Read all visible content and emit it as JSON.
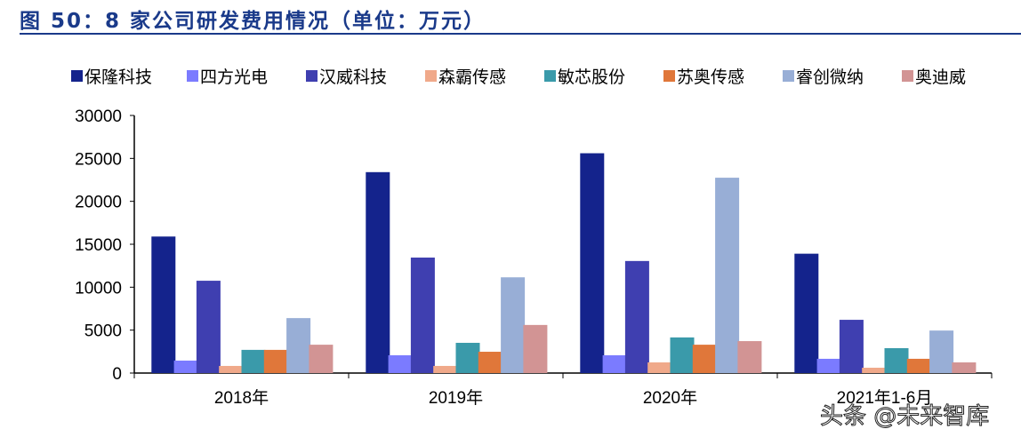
{
  "title": "图 50：8 家公司研发费用情况（单位：万元）",
  "watermark": "头条 @未来智库",
  "chart_data": {
    "type": "bar",
    "title": "图 50：8 家公司研发费用情况（单位：万元）",
    "categories": [
      "2018年",
      "2019年",
      "2020年",
      "2021年1-6月"
    ],
    "ylim": [
      0,
      30000
    ],
    "yticks": [
      0,
      5000,
      10000,
      15000,
      20000,
      25000,
      30000
    ],
    "grid": false,
    "legend": "top",
    "series": [
      {
        "name": "保隆科技",
        "color": "#14238c",
        "values": [
          15900,
          23400,
          25600,
          13900
        ]
      },
      {
        "name": "四方光电",
        "color": "#7b7bff",
        "values": [
          1450,
          2070,
          2070,
          1660
        ]
      },
      {
        "name": "汉威科技",
        "color": "#3f3fb0",
        "values": [
          10750,
          13450,
          13050,
          6200
        ]
      },
      {
        "name": "森霸传感",
        "color": "#f0a98a",
        "values": [
          830,
          830,
          1240,
          620
        ]
      },
      {
        "name": "敏芯股份",
        "color": "#3a9aaa",
        "values": [
          2700,
          3520,
          4150,
          2900
        ]
      },
      {
        "name": "苏奥传感",
        "color": "#e0773a",
        "values": [
          2700,
          2480,
          3300,
          1660
        ]
      },
      {
        "name": "睿创微纳",
        "color": "#98aed6",
        "values": [
          6400,
          11150,
          22750,
          4950
        ]
      },
      {
        "name": "奥迪威",
        "color": "#d29494",
        "values": [
          3300,
          5600,
          3720,
          1240
        ]
      }
    ]
  }
}
